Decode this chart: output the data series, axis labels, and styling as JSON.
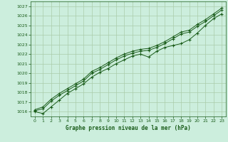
{
  "title": "Graphe pression niveau de la mer (hPa)",
  "bg_color": "#cceedd",
  "plot_bg_color": "#cceedd",
  "grid_color": "#aaccaa",
  "line_color": "#1a5c1a",
  "marker_color": "#1a5c1a",
  "text_color": "#1a5c1a",
  "xlim": [
    -0.5,
    23.5
  ],
  "ylim": [
    1015.5,
    1027.5
  ],
  "yticks": [
    1016,
    1017,
    1018,
    1019,
    1020,
    1021,
    1022,
    1023,
    1024,
    1025,
    1026,
    1027
  ],
  "xticks": [
    0,
    1,
    2,
    3,
    4,
    5,
    6,
    7,
    8,
    9,
    10,
    11,
    12,
    13,
    14,
    15,
    16,
    17,
    18,
    19,
    20,
    21,
    22,
    23
  ],
  "series": [
    [
      1016.0,
      1015.8,
      1016.5,
      1017.2,
      1017.9,
      1018.4,
      1018.9,
      1019.6,
      1020.1,
      1020.5,
      1021.0,
      1021.4,
      1021.8,
      1022.0,
      1021.7,
      1022.3,
      1022.7,
      1022.9,
      1023.1,
      1023.5,
      1024.2,
      1025.0,
      1025.7,
      1026.2
    ],
    [
      1016.1,
      1016.3,
      1017.1,
      1017.7,
      1018.2,
      1018.7,
      1019.2,
      1020.0,
      1020.4,
      1020.9,
      1021.4,
      1021.8,
      1022.1,
      1022.3,
      1022.4,
      1022.7,
      1023.1,
      1023.6,
      1024.1,
      1024.3,
      1024.9,
      1025.4,
      1026.0,
      1026.6
    ],
    [
      1016.2,
      1016.5,
      1017.3,
      1017.9,
      1018.4,
      1018.9,
      1019.4,
      1020.2,
      1020.6,
      1021.1,
      1021.6,
      1022.0,
      1022.3,
      1022.5,
      1022.6,
      1022.9,
      1023.3,
      1023.8,
      1024.3,
      1024.5,
      1025.1,
      1025.6,
      1026.2,
      1026.8
    ]
  ]
}
